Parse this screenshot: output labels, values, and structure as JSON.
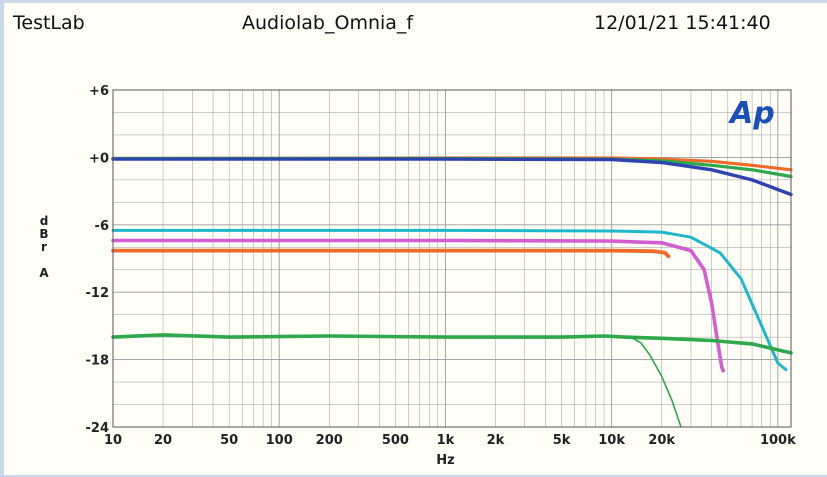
{
  "header": {
    "left": "TestLab",
    "center": "Audiolab_Omnia_f",
    "right": "12/01/21 15:41:40"
  },
  "logo": {
    "text": "Ap",
    "color": "#1a4fb8"
  },
  "colors": {
    "background": "#fffff8",
    "grid": "#9a9a9a",
    "frame_accent": "#c9d7ea"
  },
  "chart_data": {
    "type": "line",
    "title": "",
    "xlabel": "Hz",
    "ylabel": [
      "d",
      "B",
      "r",
      "",
      "A"
    ],
    "xscale": "log",
    "xlim": [
      10,
      120000
    ],
    "ylim": [
      -24,
      6
    ],
    "grid": true,
    "legend": "none",
    "x_ticks": [
      {
        "v": 10,
        "label": "10"
      },
      {
        "v": 20,
        "label": "20"
      },
      {
        "v": 50,
        "label": "50"
      },
      {
        "v": 100,
        "label": "100"
      },
      {
        "v": 200,
        "label": "200"
      },
      {
        "v": 500,
        "label": "500"
      },
      {
        "v": 1000,
        "label": "1k"
      },
      {
        "v": 2000,
        "label": "2k"
      },
      {
        "v": 5000,
        "label": "5k"
      },
      {
        "v": 10000,
        "label": "10k"
      },
      {
        "v": 20000,
        "label": "20k"
      },
      {
        "v": 100000,
        "label": "100k"
      }
    ],
    "y_ticks": [
      {
        "v": 6,
        "label": "+6"
      },
      {
        "v": 0,
        "label": "+0"
      },
      {
        "v": -6,
        "label": "-6"
      },
      {
        "v": -12,
        "label": "-12"
      },
      {
        "v": -18,
        "label": "-18"
      },
      {
        "v": -24,
        "label": "-24"
      }
    ],
    "series": [
      {
        "color": "#f06a2a",
        "width": 3.2,
        "points": [
          [
            10,
            -0.1
          ],
          [
            1000,
            -0.05
          ],
          [
            10000,
            -0.05
          ],
          [
            20000,
            -0.15
          ],
          [
            40000,
            -0.35
          ],
          [
            70000,
            -0.7
          ],
          [
            120000,
            -1.1
          ]
        ]
      },
      {
        "color": "#2ea84a",
        "width": 3.2,
        "points": [
          [
            10,
            -0.1
          ],
          [
            1000,
            -0.1
          ],
          [
            10000,
            -0.15
          ],
          [
            20000,
            -0.3
          ],
          [
            40000,
            -0.7
          ],
          [
            70000,
            -1.1
          ],
          [
            120000,
            -1.7
          ]
        ]
      },
      {
        "color": "#2c43b0",
        "width": 3.4,
        "points": [
          [
            10,
            -0.15
          ],
          [
            1000,
            -0.15
          ],
          [
            10000,
            -0.2
          ],
          [
            20000,
            -0.45
          ],
          [
            40000,
            -1.1
          ],
          [
            70000,
            -2.0
          ],
          [
            120000,
            -3.3
          ]
        ]
      },
      {
        "color": "#1fb8c8",
        "width": 3.0,
        "points": [
          [
            10,
            -6.5
          ],
          [
            1000,
            -6.5
          ],
          [
            10000,
            -6.55
          ],
          [
            20000,
            -6.65
          ],
          [
            30000,
            -7.1
          ],
          [
            45000,
            -8.5
          ],
          [
            60000,
            -10.8
          ],
          [
            80000,
            -15.0
          ],
          [
            100000,
            -18.3
          ],
          [
            112000,
            -18.9
          ]
        ]
      },
      {
        "color": "#d45ed0",
        "width": 3.6,
        "points": [
          [
            10,
            -7.4
          ],
          [
            1000,
            -7.4
          ],
          [
            10000,
            -7.45
          ],
          [
            20000,
            -7.6
          ],
          [
            30000,
            -8.3
          ],
          [
            36000,
            -10.0
          ],
          [
            40000,
            -13.0
          ],
          [
            43000,
            -16.0
          ],
          [
            46000,
            -18.7
          ],
          [
            47000,
            -19.0
          ]
        ]
      },
      {
        "color": "#f06a2a",
        "width": 3.8,
        "points": [
          [
            10,
            -8.3
          ],
          [
            1000,
            -8.3
          ],
          [
            10000,
            -8.3
          ],
          [
            18000,
            -8.35
          ],
          [
            21000,
            -8.5
          ],
          [
            22000,
            -8.8
          ]
        ]
      },
      {
        "color": "#2ea84a",
        "width": 3.6,
        "points": [
          [
            10,
            -16.0
          ],
          [
            20,
            -15.8
          ],
          [
            50,
            -16.0
          ],
          [
            200,
            -15.9
          ],
          [
            1000,
            -16.0
          ],
          [
            5000,
            -16.0
          ],
          [
            9000,
            -15.9
          ],
          [
            12000,
            -16.0
          ],
          [
            20000,
            -16.1
          ],
          [
            40000,
            -16.3
          ],
          [
            70000,
            -16.6
          ],
          [
            120000,
            -17.4
          ]
        ]
      },
      {
        "color": "#2ea84a",
        "width": 1.6,
        "points": [
          [
            13000,
            -16.0
          ],
          [
            15000,
            -16.5
          ],
          [
            17000,
            -17.6
          ],
          [
            20000,
            -19.5
          ],
          [
            23000,
            -21.6
          ],
          [
            26000,
            -23.9
          ]
        ]
      }
    ]
  }
}
